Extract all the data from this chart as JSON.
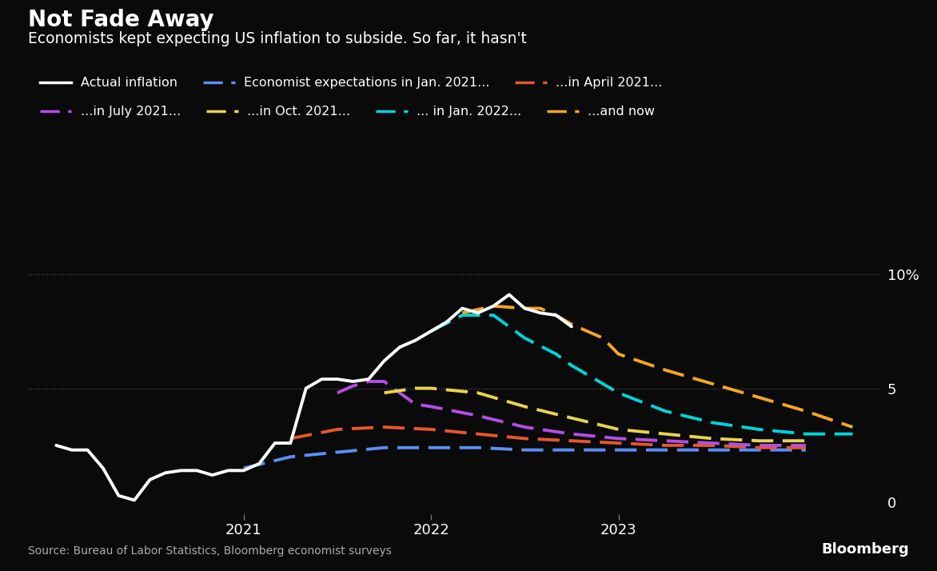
{
  "title": "Not Fade Away",
  "subtitle": "Economists kept expecting US inflation to subside. So far, it hasn't",
  "source": "Source: Bureau of Labor Statistics, Bloomberg economist surveys",
  "background_color": "#0a0a0a",
  "text_color": "#ffffff",
  "grid_color": "#555555",
  "series": {
    "actual": {
      "label": "Actual inflation",
      "color": "#ffffff",
      "dashed": false,
      "x": [
        2020.0,
        2020.083,
        2020.167,
        2020.25,
        2020.333,
        2020.417,
        2020.5,
        2020.583,
        2020.667,
        2020.75,
        2020.833,
        2020.917,
        2021.0,
        2021.083,
        2021.167,
        2021.25,
        2021.333,
        2021.417,
        2021.5,
        2021.583,
        2021.667,
        2021.75,
        2021.833,
        2021.917,
        2022.0,
        2022.083,
        2022.167,
        2022.25,
        2022.333,
        2022.417,
        2022.5,
        2022.583,
        2022.667,
        2022.75
      ],
      "y": [
        2.5,
        2.3,
        2.3,
        1.5,
        0.3,
        0.1,
        1.0,
        1.3,
        1.4,
        1.4,
        1.2,
        1.4,
        1.4,
        1.7,
        2.6,
        2.6,
        5.0,
        5.4,
        5.4,
        5.3,
        5.4,
        6.2,
        6.8,
        7.1,
        7.5,
        7.9,
        8.5,
        8.3,
        8.6,
        9.1,
        8.5,
        8.3,
        8.2,
        7.7
      ]
    },
    "jan2021": {
      "label": "Economist expectations in Jan. 2021...",
      "color": "#5b8ff9",
      "dashed": true,
      "x": [
        2021.0,
        2021.25,
        2021.5,
        2021.75,
        2022.0,
        2022.25,
        2022.5,
        2022.75,
        2023.0,
        2023.25,
        2023.5,
        2023.75,
        2024.0
      ],
      "y": [
        1.5,
        2.0,
        2.2,
        2.4,
        2.4,
        2.4,
        2.3,
        2.3,
        2.3,
        2.3,
        2.3,
        2.3,
        2.3
      ]
    },
    "apr2021": {
      "label": "...in April 2021...",
      "color": "#e8562a",
      "dashed": true,
      "x": [
        2021.25,
        2021.5,
        2021.75,
        2022.0,
        2022.25,
        2022.5,
        2022.75,
        2023.0,
        2023.25,
        2023.5,
        2023.75,
        2024.0
      ],
      "y": [
        2.8,
        3.2,
        3.3,
        3.2,
        3.0,
        2.8,
        2.7,
        2.6,
        2.5,
        2.5,
        2.4,
        2.4
      ]
    },
    "jul2021": {
      "label": "...in July 2021...",
      "color": "#b44ee8",
      "dashed": true,
      "x": [
        2021.5,
        2021.583,
        2021.667,
        2021.75,
        2021.833,
        2021.917,
        2022.0,
        2022.25,
        2022.5,
        2022.75,
        2023.0,
        2023.25,
        2023.5,
        2023.75,
        2024.0
      ],
      "y": [
        4.8,
        5.1,
        5.3,
        5.3,
        4.8,
        4.3,
        4.2,
        3.8,
        3.3,
        3.0,
        2.8,
        2.7,
        2.6,
        2.5,
        2.5
      ]
    },
    "oct2021": {
      "label": "...in Oct. 2021...",
      "color": "#e8d44d",
      "dashed": true,
      "x": [
        2021.75,
        2021.917,
        2022.0,
        2022.25,
        2022.5,
        2022.75,
        2023.0,
        2023.25,
        2023.5,
        2023.75,
        2024.0
      ],
      "y": [
        4.8,
        5.0,
        5.0,
        4.8,
        4.2,
        3.7,
        3.2,
        3.0,
        2.8,
        2.7,
        2.7
      ]
    },
    "jan2022": {
      "label": "... in Jan. 2022...",
      "color": "#00d4d8",
      "dashed": true,
      "x": [
        2022.0,
        2022.167,
        2022.333,
        2022.5,
        2022.667,
        2022.75,
        2023.0,
        2023.25,
        2023.5,
        2023.75,
        2024.0,
        2024.25
      ],
      "y": [
        7.5,
        8.2,
        8.2,
        7.2,
        6.5,
        6.0,
        4.8,
        4.0,
        3.5,
        3.2,
        3.0,
        3.0
      ]
    },
    "now": {
      "label": "...and now",
      "color": "#f5a623",
      "dashed": true,
      "x": [
        2022.167,
        2022.333,
        2022.5,
        2022.583,
        2022.667,
        2022.75,
        2022.917,
        2023.0,
        2023.25,
        2023.5,
        2023.75,
        2024.0,
        2024.25
      ],
      "y": [
        8.3,
        8.6,
        8.5,
        8.5,
        8.2,
        7.8,
        7.2,
        6.5,
        5.8,
        5.2,
        4.6,
        4.0,
        3.3
      ]
    }
  }
}
